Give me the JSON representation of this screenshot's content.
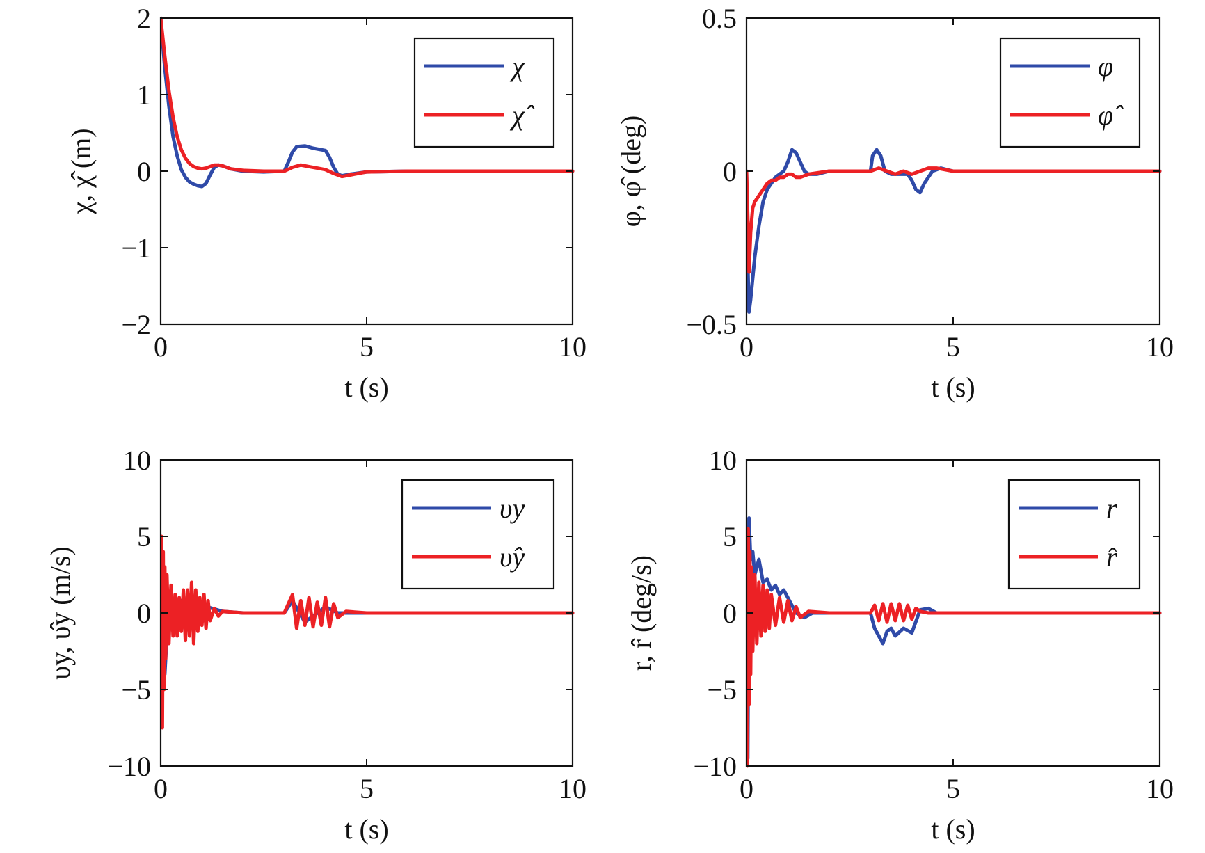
{
  "colors": {
    "blue": "#2f4aa8",
    "red": "#ec2125",
    "axis": "#111111"
  },
  "chart_data": [
    {
      "type": "line",
      "xlabel": "t (s)",
      "ylabel": "χ, χ̂ (m)",
      "xlim": [
        0,
        10
      ],
      "ylim": [
        -2,
        2
      ],
      "xticks": [
        0,
        5,
        10
      ],
      "yticks": [
        -2,
        -1,
        0,
        1,
        2
      ],
      "xtick_labels": [
        "0",
        "5",
        "10"
      ],
      "ytick_labels": [
        "−2",
        "−1",
        "0",
        "1",
        "2"
      ],
      "legend_placement": "top-right",
      "grid": false,
      "series": [
        {
          "name": "χ",
          "color": "#2f4aa8",
          "x": [
            0,
            0.1,
            0.2,
            0.3,
            0.4,
            0.5,
            0.6,
            0.7,
            0.8,
            0.9,
            1.0,
            1.1,
            1.2,
            1.3,
            1.4,
            1.5,
            1.7,
            2.0,
            2.5,
            3.0,
            3.1,
            3.2,
            3.3,
            3.5,
            3.7,
            3.9,
            4.0,
            4.1,
            4.2,
            4.3,
            4.4,
            4.6,
            5.0,
            6.0,
            8.0,
            10.0
          ],
          "y": [
            2.0,
            1.35,
            0.85,
            0.45,
            0.2,
            0.02,
            -0.08,
            -0.14,
            -0.17,
            -0.19,
            -0.2,
            -0.16,
            -0.05,
            0.05,
            0.08,
            0.07,
            0.03,
            0.0,
            -0.01,
            0.0,
            0.12,
            0.25,
            0.32,
            0.33,
            0.3,
            0.28,
            0.27,
            0.18,
            0.05,
            -0.04,
            -0.06,
            -0.04,
            -0.01,
            0.0,
            0.0,
            0.0
          ]
        },
        {
          "name": "χ̂",
          "color": "#ec2125",
          "x": [
            0,
            0.1,
            0.2,
            0.3,
            0.4,
            0.5,
            0.6,
            0.7,
            0.8,
            0.9,
            1.0,
            1.1,
            1.2,
            1.3,
            1.4,
            1.5,
            1.7,
            2.0,
            2.5,
            3.0,
            3.2,
            3.4,
            3.6,
            3.8,
            4.0,
            4.2,
            4.4,
            4.6,
            5.0,
            6.0,
            8.0,
            10.0
          ],
          "y": [
            2.0,
            1.5,
            1.05,
            0.7,
            0.45,
            0.28,
            0.17,
            0.1,
            0.06,
            0.04,
            0.03,
            0.04,
            0.06,
            0.08,
            0.08,
            0.07,
            0.03,
            0.01,
            0.0,
            0.0,
            0.05,
            0.08,
            0.06,
            0.04,
            0.02,
            -0.03,
            -0.07,
            -0.05,
            -0.01,
            0.0,
            0.0,
            0.0
          ]
        }
      ]
    },
    {
      "type": "line",
      "xlabel": "t (s)",
      "ylabel": "φ, φ̂ (deg)",
      "xlim": [
        0,
        10
      ],
      "ylim": [
        -0.5,
        0.5
      ],
      "xticks": [
        0,
        5,
        10
      ],
      "yticks": [
        -0.5,
        0,
        0.5
      ],
      "xtick_labels": [
        "0",
        "5",
        "10"
      ],
      "ytick_labels": [
        "−0.5",
        "0",
        "0.5"
      ],
      "legend_placement": "top-right",
      "grid": false,
      "series": [
        {
          "name": "φ",
          "color": "#2f4aa8",
          "x": [
            0,
            0.03,
            0.06,
            0.1,
            0.15,
            0.2,
            0.3,
            0.4,
            0.5,
            0.6,
            0.7,
            0.8,
            0.9,
            1.0,
            1.1,
            1.2,
            1.3,
            1.4,
            1.5,
            1.7,
            2.0,
            2.5,
            3.0,
            3.05,
            3.15,
            3.25,
            3.35,
            3.5,
            3.7,
            3.9,
            4.0,
            4.1,
            4.2,
            4.3,
            4.5,
            4.7,
            5.0,
            6.0,
            8.0,
            10.0
          ],
          "y": [
            0.0,
            -0.3,
            -0.46,
            -0.42,
            -0.35,
            -0.28,
            -0.18,
            -0.1,
            -0.06,
            -0.04,
            -0.02,
            -0.01,
            0.0,
            0.03,
            0.07,
            0.06,
            0.03,
            0.0,
            -0.01,
            -0.01,
            0.0,
            0.0,
            0.0,
            0.05,
            0.07,
            0.05,
            0.0,
            -0.01,
            -0.01,
            -0.01,
            -0.03,
            -0.06,
            -0.07,
            -0.04,
            0.0,
            0.01,
            0.0,
            0.0,
            0.0,
            0.0
          ]
        },
        {
          "name": "φ̂",
          "color": "#ec2125",
          "x": [
            0,
            0.03,
            0.06,
            0.1,
            0.15,
            0.2,
            0.3,
            0.4,
            0.5,
            0.6,
            0.7,
            0.8,
            0.9,
            1.0,
            1.1,
            1.2,
            1.3,
            1.5,
            2.0,
            2.5,
            3.0,
            3.2,
            3.4,
            3.6,
            3.8,
            4.0,
            4.2,
            4.4,
            4.6,
            5.0,
            6.0,
            8.0,
            10.0
          ],
          "y": [
            0.0,
            -0.15,
            -0.33,
            -0.2,
            -0.12,
            -0.1,
            -0.08,
            -0.06,
            -0.04,
            -0.03,
            -0.03,
            -0.02,
            -0.02,
            -0.01,
            -0.01,
            -0.02,
            -0.02,
            -0.01,
            0.0,
            0.0,
            0.0,
            0.01,
            0.0,
            -0.01,
            0.0,
            -0.01,
            0.0,
            0.01,
            0.01,
            0.0,
            0.0,
            0.0,
            0.0
          ]
        }
      ]
    },
    {
      "type": "line",
      "xlabel": "t (s)",
      "ylabel": "υy, υ̂y (m/s)",
      "xlim": [
        0,
        10
      ],
      "ylim": [
        -10,
        10
      ],
      "xticks": [
        0,
        5,
        10
      ],
      "yticks": [
        -10,
        -5,
        0,
        5,
        10
      ],
      "xtick_labels": [
        "0",
        "5",
        "10"
      ],
      "ytick_labels": [
        "−10",
        "−5",
        "0",
        "5",
        "10"
      ],
      "legend_placement": "top-right",
      "grid": false,
      "series": [
        {
          "name": "υy",
          "color": "#2f4aa8",
          "x": [
            0,
            0.05,
            0.1,
            0.2,
            0.3,
            0.5,
            0.7,
            1.0,
            1.5,
            2.0,
            3.0,
            3.2,
            3.5,
            4.0,
            4.3,
            5.0,
            10.0
          ],
          "y": [
            0,
            3,
            -4,
            1,
            -1,
            0.8,
            -0.8,
            0.5,
            0.1,
            0,
            0,
            0.8,
            -0.6,
            0.4,
            0,
            0,
            0
          ]
        },
        {
          "name": "υ̂y",
          "color": "#ec2125",
          "x": [
            0,
            0.02,
            0.04,
            0.06,
            0.08,
            0.1,
            0.12,
            0.15,
            0.2,
            0.25,
            0.3,
            0.35,
            0.4,
            0.45,
            0.5,
            0.55,
            0.6,
            0.65,
            0.7,
            0.75,
            0.8,
            0.85,
            0.9,
            0.95,
            1.0,
            1.05,
            1.1,
            1.15,
            1.2,
            1.3,
            1.4,
            1.5,
            2.0,
            3.0,
            3.1,
            3.2,
            3.3,
            3.4,
            3.5,
            3.6,
            3.7,
            3.8,
            3.9,
            4.0,
            4.1,
            4.2,
            4.3,
            4.5,
            5.0,
            10.0
          ],
          "y": [
            0,
            5,
            -7.5,
            4,
            -5,
            3,
            -3,
            2.5,
            -2,
            1.8,
            -1.5,
            1.2,
            -1.5,
            1.0,
            -1.2,
            1.5,
            -1.8,
            1.5,
            -1.5,
            2.0,
            -2.0,
            1.5,
            -1.2,
            1.0,
            -0.8,
            1.2,
            -1.0,
            0.8,
            -0.5,
            0.3,
            -0.2,
            0.1,
            0,
            0,
            0.6,
            1.2,
            -1.0,
            0.8,
            -0.8,
            1.0,
            -0.9,
            0.7,
            -0.8,
            1.0,
            -0.9,
            0.6,
            -0.3,
            0.1,
            0,
            0
          ]
        }
      ]
    },
    {
      "type": "line",
      "xlabel": "t (s)",
      "ylabel": "r, r̂ (deg/s)",
      "xlim": [
        0,
        10
      ],
      "ylim": [
        -10,
        10
      ],
      "xticks": [
        0,
        5,
        10
      ],
      "yticks": [
        -10,
        -5,
        0,
        5,
        10
      ],
      "xtick_labels": [
        "0",
        "5",
        "10"
      ],
      "ytick_labels": [
        "−10",
        "−5",
        "0",
        "5",
        "10"
      ],
      "legend_placement": "top-right",
      "grid": false,
      "series": [
        {
          "name": "r",
          "color": "#2f4aa8",
          "x": [
            0,
            0.03,
            0.06,
            0.1,
            0.15,
            0.2,
            0.3,
            0.4,
            0.5,
            0.6,
            0.7,
            0.8,
            0.9,
            1.0,
            1.1,
            1.2,
            1.4,
            1.6,
            2.0,
            3.0,
            3.1,
            3.2,
            3.3,
            3.4,
            3.5,
            3.6,
            3.8,
            4.0,
            4.2,
            4.4,
            4.6,
            5.0,
            10.0
          ],
          "y": [
            0,
            -9.5,
            6.2,
            3.5,
            4.0,
            2.5,
            3.5,
            2.0,
            2.2,
            1.5,
            1.8,
            1.2,
            1.5,
            1.0,
            0.5,
            0.0,
            -0.3,
            0,
            0,
            0,
            -1.0,
            -1.5,
            -2.0,
            -1.2,
            -1.0,
            -1.5,
            -1.0,
            -1.3,
            0.2,
            0.3,
            0,
            0,
            0
          ]
        },
        {
          "name": "r̂",
          "color": "#ec2125",
          "x": [
            0,
            0.02,
            0.04,
            0.06,
            0.08,
            0.1,
            0.12,
            0.15,
            0.2,
            0.25,
            0.3,
            0.35,
            0.4,
            0.45,
            0.5,
            0.55,
            0.6,
            0.7,
            0.8,
            0.9,
            1.0,
            1.1,
            1.2,
            1.3,
            1.5,
            2.0,
            3.0,
            3.1,
            3.2,
            3.3,
            3.4,
            3.5,
            3.6,
            3.7,
            3.8,
            3.9,
            4.0,
            4.1,
            4.2,
            4.4,
            5.0,
            10.0
          ],
          "y": [
            0,
            -10,
            5.5,
            -6,
            4.0,
            -4,
            3.0,
            -2.5,
            2.5,
            -2.0,
            2.0,
            -1.5,
            1.8,
            -1.2,
            1.5,
            -1.0,
            1.2,
            -0.8,
            1.0,
            -0.6,
            0.8,
            -0.5,
            0.4,
            -0.3,
            0.1,
            0,
            0,
            0.5,
            -0.5,
            0.6,
            -0.6,
            0.6,
            -0.5,
            0.6,
            -0.5,
            0.5,
            -0.4,
            0.3,
            0.1,
            0,
            0,
            0
          ]
        }
      ]
    }
  ]
}
